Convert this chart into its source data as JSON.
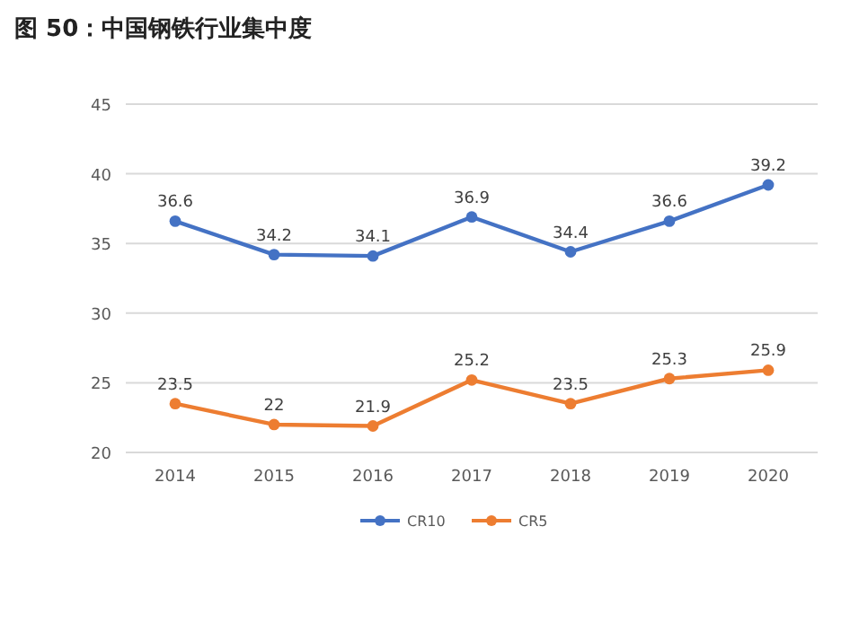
{
  "chart_data": {
    "type": "line",
    "title": "图 50：中国钢铁行业集中度",
    "categories": [
      "2014",
      "2015",
      "2016",
      "2017",
      "2018",
      "2019",
      "2020"
    ],
    "series": [
      {
        "name": "CR10",
        "color": "#4472c4",
        "values": [
          36.6,
          34.2,
          34.1,
          36.9,
          34.4,
          36.6,
          39.2
        ]
      },
      {
        "name": "CR5",
        "color": "#ed7d31",
        "values": [
          23.5,
          22,
          21.9,
          25.2,
          23.5,
          25.3,
          25.9
        ]
      }
    ],
    "ylim": [
      20,
      45
    ],
    "yticks": [
      20,
      25,
      30,
      35,
      40,
      45
    ],
    "grid": "y",
    "legend": "bottom",
    "marker": "circle",
    "data_labels": true
  }
}
